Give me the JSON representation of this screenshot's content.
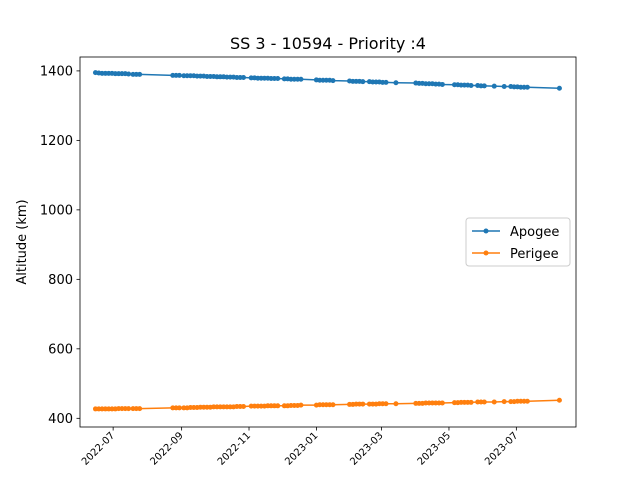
{
  "chart_data": {
    "type": "line",
    "title": "SS 3 - 10594 - Priority :4",
    "xlabel": "",
    "ylabel": "Altitude (km)",
    "ylim": [
      375,
      1440
    ],
    "xlim": [
      "2022-06-01",
      "2023-08-24"
    ],
    "x_tick_labels": [
      "2022-07",
      "2022-09",
      "2022-11",
      "2023-01",
      "2023-03",
      "2023-05",
      "2023-07"
    ],
    "y_ticks": [
      400,
      600,
      800,
      1000,
      1200,
      1400
    ],
    "grid": false,
    "legend_position": "center-right",
    "series": [
      {
        "name": "Apogee",
        "color": "#1f77b4",
        "points": [
          [
            "2022-06-15",
            1395
          ],
          [
            "2022-06-18",
            1394
          ],
          [
            "2022-06-21",
            1393
          ],
          [
            "2022-06-24",
            1393
          ],
          [
            "2022-06-27",
            1393
          ],
          [
            "2022-06-30",
            1393
          ],
          [
            "2022-07-03",
            1392
          ],
          [
            "2022-07-06",
            1392
          ],
          [
            "2022-07-09",
            1392
          ],
          [
            "2022-07-12",
            1392
          ],
          [
            "2022-07-15",
            1391
          ],
          [
            "2022-07-19",
            1390
          ],
          [
            "2022-07-22",
            1390
          ],
          [
            "2022-07-25",
            1390
          ],
          [
            "2022-08-24",
            1387
          ],
          [
            "2022-08-27",
            1387
          ],
          [
            "2022-08-30",
            1387
          ],
          [
            "2022-09-03",
            1386
          ],
          [
            "2022-09-06",
            1386
          ],
          [
            "2022-09-09",
            1386
          ],
          [
            "2022-09-12",
            1386
          ],
          [
            "2022-09-15",
            1385
          ],
          [
            "2022-09-18",
            1385
          ],
          [
            "2022-09-21",
            1385
          ],
          [
            "2022-09-24",
            1384
          ],
          [
            "2022-09-27",
            1384
          ],
          [
            "2022-09-30",
            1384
          ],
          [
            "2022-10-03",
            1383
          ],
          [
            "2022-10-06",
            1383
          ],
          [
            "2022-10-09",
            1383
          ],
          [
            "2022-10-12",
            1382
          ],
          [
            "2022-10-15",
            1382
          ],
          [
            "2022-10-18",
            1382
          ],
          [
            "2022-10-21",
            1381
          ],
          [
            "2022-10-24",
            1381
          ],
          [
            "2022-10-27",
            1381
          ],
          [
            "2022-11-03",
            1380
          ],
          [
            "2022-11-06",
            1380
          ],
          [
            "2022-11-09",
            1379
          ],
          [
            "2022-11-12",
            1379
          ],
          [
            "2022-11-15",
            1379
          ],
          [
            "2022-11-18",
            1379
          ],
          [
            "2022-11-21",
            1378
          ],
          [
            "2022-11-24",
            1378
          ],
          [
            "2022-11-27",
            1378
          ],
          [
            "2022-12-03",
            1377
          ],
          [
            "2022-12-06",
            1377
          ],
          [
            "2022-12-09",
            1376
          ],
          [
            "2022-12-12",
            1376
          ],
          [
            "2022-12-15",
            1376
          ],
          [
            "2022-12-18",
            1376
          ],
          [
            "2023-01-01",
            1374
          ],
          [
            "2023-01-04",
            1373
          ],
          [
            "2023-01-07",
            1373
          ],
          [
            "2023-01-10",
            1373
          ],
          [
            "2023-01-13",
            1373
          ],
          [
            "2023-01-16",
            1372
          ],
          [
            "2023-01-31",
            1371
          ],
          [
            "2023-02-03",
            1370
          ],
          [
            "2023-02-06",
            1370
          ],
          [
            "2023-02-09",
            1370
          ],
          [
            "2023-02-12",
            1369
          ],
          [
            "2023-02-18",
            1369
          ],
          [
            "2023-02-21",
            1368
          ],
          [
            "2023-02-24",
            1368
          ],
          [
            "2023-02-27",
            1368
          ],
          [
            "2023-03-02",
            1367
          ],
          [
            "2023-03-05",
            1367
          ],
          [
            "2023-03-14",
            1366
          ],
          [
            "2023-04-01",
            1365
          ],
          [
            "2023-04-04",
            1364
          ],
          [
            "2023-04-07",
            1364
          ],
          [
            "2023-04-10",
            1363
          ],
          [
            "2023-04-13",
            1363
          ],
          [
            "2023-04-16",
            1363
          ],
          [
            "2023-04-19",
            1362
          ],
          [
            "2023-04-22",
            1362
          ],
          [
            "2023-04-25",
            1361
          ],
          [
            "2023-05-06",
            1360
          ],
          [
            "2023-05-09",
            1360
          ],
          [
            "2023-05-12",
            1359
          ],
          [
            "2023-05-15",
            1359
          ],
          [
            "2023-05-18",
            1359
          ],
          [
            "2023-05-21",
            1358
          ],
          [
            "2023-05-27",
            1358
          ],
          [
            "2023-05-30",
            1357
          ],
          [
            "2023-06-02",
            1357
          ],
          [
            "2023-06-11",
            1356
          ],
          [
            "2023-06-20",
            1355
          ],
          [
            "2023-06-26",
            1355
          ],
          [
            "2023-06-29",
            1354
          ],
          [
            "2023-07-02",
            1354
          ],
          [
            "2023-07-05",
            1353
          ],
          [
            "2023-07-08",
            1353
          ],
          [
            "2023-07-11",
            1353
          ],
          [
            "2023-08-09",
            1350
          ]
        ]
      },
      {
        "name": "Perigee",
        "color": "#ff7f0e",
        "points": [
          [
            "2022-06-15",
            427
          ],
          [
            "2022-06-18",
            427
          ],
          [
            "2022-06-21",
            427
          ],
          [
            "2022-06-24",
            427
          ],
          [
            "2022-06-27",
            427
          ],
          [
            "2022-06-30",
            427
          ],
          [
            "2022-07-03",
            427
          ],
          [
            "2022-07-06",
            428
          ],
          [
            "2022-07-09",
            428
          ],
          [
            "2022-07-12",
            428
          ],
          [
            "2022-07-15",
            428
          ],
          [
            "2022-07-19",
            428
          ],
          [
            "2022-07-22",
            428
          ],
          [
            "2022-07-25",
            428
          ],
          [
            "2022-08-24",
            430
          ],
          [
            "2022-08-27",
            430
          ],
          [
            "2022-08-30",
            430
          ],
          [
            "2022-09-03",
            430
          ],
          [
            "2022-09-06",
            430
          ],
          [
            "2022-09-09",
            431
          ],
          [
            "2022-09-12",
            431
          ],
          [
            "2022-09-15",
            431
          ],
          [
            "2022-09-18",
            432
          ],
          [
            "2022-09-21",
            432
          ],
          [
            "2022-09-24",
            432
          ],
          [
            "2022-09-27",
            432
          ],
          [
            "2022-09-30",
            433
          ],
          [
            "2022-10-03",
            433
          ],
          [
            "2022-10-06",
            433
          ],
          [
            "2022-10-09",
            433
          ],
          [
            "2022-10-12",
            433
          ],
          [
            "2022-10-15",
            433
          ],
          [
            "2022-10-18",
            433
          ],
          [
            "2022-10-21",
            434
          ],
          [
            "2022-10-24",
            434
          ],
          [
            "2022-10-27",
            434
          ],
          [
            "2022-11-03",
            435
          ],
          [
            "2022-11-06",
            435
          ],
          [
            "2022-11-09",
            435
          ],
          [
            "2022-11-12",
            435
          ],
          [
            "2022-11-15",
            435
          ],
          [
            "2022-11-18",
            436
          ],
          [
            "2022-11-21",
            436
          ],
          [
            "2022-11-24",
            436
          ],
          [
            "2022-11-27",
            436
          ],
          [
            "2022-12-03",
            436
          ],
          [
            "2022-12-06",
            436
          ],
          [
            "2022-12-09",
            437
          ],
          [
            "2022-12-12",
            437
          ],
          [
            "2022-12-15",
            437
          ],
          [
            "2022-12-18",
            438
          ],
          [
            "2023-01-01",
            438
          ],
          [
            "2023-01-04",
            439
          ],
          [
            "2023-01-07",
            439
          ],
          [
            "2023-01-10",
            439
          ],
          [
            "2023-01-13",
            439
          ],
          [
            "2023-01-16",
            439
          ],
          [
            "2023-01-31",
            440
          ],
          [
            "2023-02-03",
            440
          ],
          [
            "2023-02-06",
            441
          ],
          [
            "2023-02-09",
            441
          ],
          [
            "2023-02-12",
            441
          ],
          [
            "2023-02-18",
            441
          ],
          [
            "2023-02-21",
            441
          ],
          [
            "2023-02-24",
            441
          ],
          [
            "2023-02-27",
            442
          ],
          [
            "2023-03-02",
            442
          ],
          [
            "2023-03-05",
            442
          ],
          [
            "2023-03-14",
            442
          ],
          [
            "2023-04-01",
            443
          ],
          [
            "2023-04-04",
            443
          ],
          [
            "2023-04-07",
            443
          ],
          [
            "2023-04-10",
            444
          ],
          [
            "2023-04-13",
            444
          ],
          [
            "2023-04-16",
            444
          ],
          [
            "2023-04-19",
            444
          ],
          [
            "2023-04-22",
            444
          ],
          [
            "2023-04-25",
            444
          ],
          [
            "2023-05-06",
            445
          ],
          [
            "2023-05-09",
            445
          ],
          [
            "2023-05-12",
            446
          ],
          [
            "2023-05-15",
            446
          ],
          [
            "2023-05-18",
            446
          ],
          [
            "2023-05-21",
            446
          ],
          [
            "2023-05-27",
            447
          ],
          [
            "2023-05-30",
            447
          ],
          [
            "2023-06-02",
            447
          ],
          [
            "2023-06-11",
            447
          ],
          [
            "2023-06-20",
            448
          ],
          [
            "2023-06-26",
            448
          ],
          [
            "2023-06-29",
            448
          ],
          [
            "2023-07-02",
            449
          ],
          [
            "2023-07-05",
            449
          ],
          [
            "2023-07-08",
            449
          ],
          [
            "2023-07-11",
            449
          ],
          [
            "2023-08-09",
            452
          ]
        ]
      }
    ]
  }
}
